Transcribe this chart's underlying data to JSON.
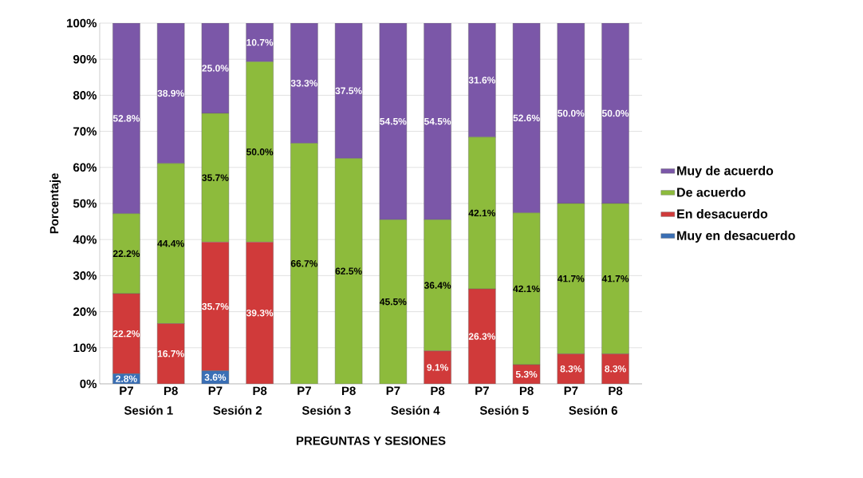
{
  "chart_data": {
    "type": "bar",
    "stacked": true,
    "xlabel": "PREGUNTAS Y SESIONES",
    "ylabel": "Porcentaje",
    "categories": [
      "P7",
      "P8",
      "P7",
      "P8",
      "P7",
      "P8",
      "P7",
      "P8",
      "P7",
      "P8",
      "P7",
      "P8"
    ],
    "annotations": [
      "Sesión 1",
      "Sesión 2",
      "Sesión 3",
      "Sesión 4",
      "Sesión 5",
      "Sesión 6"
    ],
    "ylim": [
      0,
      100
    ],
    "yticks": [
      {
        "value": 0,
        "label": "0%"
      },
      {
        "value": 10,
        "label": "10%"
      },
      {
        "value": 20,
        "label": "20%"
      },
      {
        "value": 30,
        "label": "30%"
      },
      {
        "value": 40,
        "label": "40%"
      },
      {
        "value": 50,
        "label": "50%"
      },
      {
        "value": 60,
        "label": "60%"
      },
      {
        "value": 70,
        "label": "70%"
      },
      {
        "value": 80,
        "label": "80%"
      },
      {
        "value": 90,
        "label": "90%"
      },
      {
        "value": 100,
        "label": "100%"
      }
    ],
    "grid": "y",
    "legend": "right",
    "series": [
      {
        "name": "Muy en desacuerdo",
        "color": "#3a6fb5",
        "values": [
          2.8,
          0,
          3.6,
          0,
          0,
          0,
          0,
          0,
          0,
          0,
          0,
          0
        ],
        "value_labels": [
          "2.8%",
          null,
          "3.6%",
          null,
          null,
          null,
          null,
          null,
          null,
          null,
          null,
          null
        ]
      },
      {
        "name": "En desacuerdo",
        "color": "#d03a3a",
        "values": [
          22.2,
          16.7,
          35.7,
          39.3,
          0,
          0,
          0,
          9.1,
          26.3,
          5.3,
          8.3,
          8.3
        ],
        "value_labels": [
          "22.2%",
          "16.7%",
          "35.7%",
          "39.3%",
          null,
          null,
          null,
          "9.1%",
          "26.3%",
          "5.3%",
          "8.3%",
          "8.3%"
        ]
      },
      {
        "name": "De acuerdo",
        "color": "#8dbb3c",
        "values": [
          22.2,
          44.4,
          35.7,
          50.0,
          66.7,
          62.5,
          45.5,
          36.4,
          42.1,
          42.1,
          41.7,
          41.7
        ],
        "value_labels": [
          "22.2%",
          "44.4%",
          "35.7%",
          "50.0%",
          "66.7%",
          "62.5%",
          "45.5%",
          "36.4%",
          "42.1%",
          "42.1%",
          "41.7%",
          "41.7%"
        ]
      },
      {
        "name": "Muy de acuerdo",
        "color": "#7b57a8",
        "values": [
          52.8,
          38.9,
          25.0,
          10.7,
          33.3,
          37.5,
          54.5,
          54.5,
          31.6,
          52.6,
          50.0,
          50.0
        ],
        "value_labels": [
          "52.8%",
          "38.9%",
          "25.0%",
          "10.7%",
          "33.3%",
          "37.5%",
          "54.5%",
          "54.5%",
          "31.6%",
          "52.6%",
          "50.0%",
          "50.0%"
        ]
      }
    ]
  }
}
